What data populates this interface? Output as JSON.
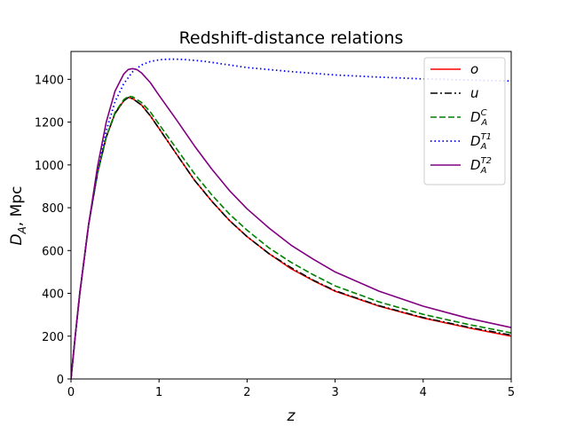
{
  "chart_data": {
    "type": "line",
    "title": "Redshift-distance relations",
    "xlabel": "z",
    "ylabel": "D_A, Mpc",
    "xlim": [
      0,
      5
    ],
    "ylim": [
      0,
      1530
    ],
    "xticks": [
      0,
      1,
      2,
      3,
      4,
      5
    ],
    "yticks": [
      0,
      200,
      400,
      600,
      800,
      1000,
      1200,
      1400
    ],
    "grid": false,
    "legend_position": "top-right",
    "series": [
      {
        "name": "o",
        "color": "#ff0000",
        "style": "solid",
        "x": [
          0,
          0.05,
          0.1,
          0.2,
          0.3,
          0.4,
          0.5,
          0.6,
          0.65,
          0.7,
          0.8,
          0.9,
          1.0,
          1.2,
          1.4,
          1.6,
          1.8,
          2.0,
          2.25,
          2.5,
          2.75,
          3.0,
          3.5,
          4.0,
          4.5,
          5.0
        ],
        "values": [
          0,
          210,
          400,
          720,
          960,
          1130,
          1240,
          1300,
          1315,
          1310,
          1280,
          1230,
          1170,
          1050,
          930,
          830,
          740,
          665,
          585,
          515,
          460,
          410,
          340,
          285,
          240,
          200
        ]
      },
      {
        "name": "u",
        "color": "#000000",
        "style": "dashdot",
        "x": [
          0,
          0.05,
          0.1,
          0.2,
          0.3,
          0.4,
          0.5,
          0.6,
          0.65,
          0.7,
          0.8,
          0.9,
          1.0,
          1.2,
          1.4,
          1.6,
          1.8,
          2.0,
          2.25,
          2.5,
          2.75,
          3.0,
          3.5,
          4.0,
          4.5,
          5.0
        ],
        "values": [
          0,
          210,
          400,
          720,
          960,
          1130,
          1240,
          1300,
          1315,
          1310,
          1280,
          1230,
          1170,
          1050,
          930,
          830,
          740,
          665,
          585,
          520,
          462,
          412,
          342,
          287,
          243,
          205
        ]
      },
      {
        "name": "D_A^C",
        "color": "#008000",
        "style": "dashed",
        "x": [
          0,
          0.05,
          0.1,
          0.2,
          0.3,
          0.4,
          0.5,
          0.6,
          0.65,
          0.7,
          0.8,
          0.9,
          1.0,
          1.2,
          1.4,
          1.6,
          1.8,
          2.0,
          2.25,
          2.5,
          2.75,
          3.0,
          3.5,
          4.0,
          4.5,
          5.0
        ],
        "values": [
          0,
          210,
          400,
          720,
          960,
          1130,
          1245,
          1305,
          1320,
          1318,
          1292,
          1248,
          1190,
          1075,
          960,
          860,
          770,
          695,
          612,
          545,
          487,
          435,
          360,
          302,
          256,
          215
        ]
      },
      {
        "name": "D_A^T1",
        "color": "#0000ff",
        "style": "dotted",
        "x": [
          0,
          0.05,
          0.1,
          0.2,
          0.3,
          0.4,
          0.5,
          0.6,
          0.7,
          0.8,
          0.9,
          1.0,
          1.1,
          1.2,
          1.3,
          1.5,
          1.75,
          2.0,
          2.5,
          3.0,
          3.5,
          4.0,
          4.5,
          5.0
        ],
        "values": [
          0,
          210,
          400,
          720,
          970,
          1160,
          1295,
          1380,
          1435,
          1467,
          1483,
          1491,
          1494,
          1494,
          1492,
          1485,
          1470,
          1455,
          1436,
          1420,
          1410,
          1402,
          1397,
          1392
        ]
      },
      {
        "name": "D_A^T2",
        "color": "#800080",
        "style": "solid",
        "x": [
          0,
          0.05,
          0.1,
          0.2,
          0.3,
          0.4,
          0.5,
          0.6,
          0.65,
          0.7,
          0.75,
          0.8,
          0.9,
          1.0,
          1.2,
          1.4,
          1.6,
          1.8,
          2.0,
          2.25,
          2.5,
          2.75,
          3.0,
          3.5,
          4.0,
          4.5,
          5.0
        ],
        "values": [
          0,
          210,
          400,
          720,
          990,
          1200,
          1345,
          1425,
          1446,
          1450,
          1445,
          1430,
          1385,
          1325,
          1210,
          1090,
          980,
          880,
          795,
          705,
          625,
          560,
          500,
          410,
          340,
          285,
          240
        ]
      }
    ]
  },
  "legend": [
    {
      "base": "o",
      "sub": "",
      "sup": ""
    },
    {
      "base": "u",
      "sub": "",
      "sup": ""
    },
    {
      "base": "D",
      "sub": "A",
      "sup": "C"
    },
    {
      "base": "D",
      "sub": "A",
      "sup": "T1"
    },
    {
      "base": "D",
      "sub": "A",
      "sup": "T2"
    }
  ],
  "labels": {
    "x_axis": "z",
    "y_axis_base": "D",
    "y_axis_sub": "A",
    "y_axis_rest": ", Mpc"
  }
}
